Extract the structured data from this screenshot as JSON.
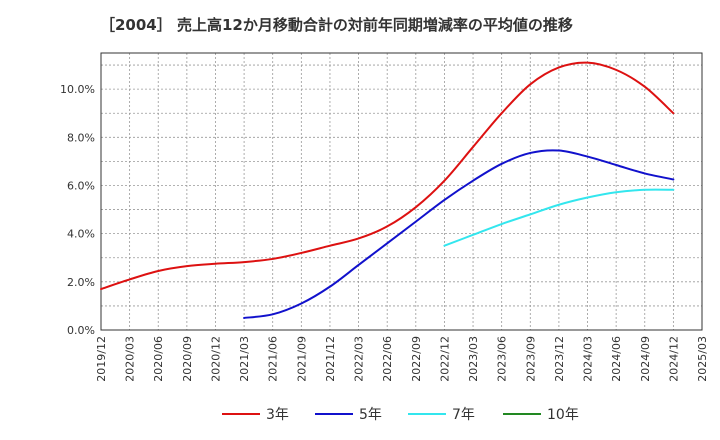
{
  "chart_data": {
    "type": "line",
    "title": "［2004］ 売上高12か月移動合計の対前年同期増減率の平均値の推移",
    "xlabel": "",
    "ylabel": "",
    "ylim": [
      0,
      11.5
    ],
    "y_ticks": [
      0,
      2,
      4,
      6,
      8,
      10
    ],
    "y_tick_labels": [
      "0.0%",
      "2.0%",
      "4.0%",
      "6.0%",
      "8.0%",
      "10.0%"
    ],
    "x_tick_labels": [
      "2019/12",
      "2020/03",
      "2020/06",
      "2020/09",
      "2020/12",
      "2021/03",
      "2021/06",
      "2021/09",
      "2021/12",
      "2022/03",
      "2022/06",
      "2022/09",
      "2022/12",
      "2023/03",
      "2023/06",
      "2023/09",
      "2023/12",
      "2024/03",
      "2024/06",
      "2024/09",
      "2024/12",
      "2025/03"
    ],
    "grid": true,
    "legend_position": "bottom",
    "series": [
      {
        "name": "3年",
        "color": "#dd1111",
        "x": [
          "2019/12",
          "2020/03",
          "2020/06",
          "2020/09",
          "2020/12",
          "2021/03",
          "2021/06",
          "2021/09",
          "2021/12",
          "2022/03",
          "2022/06",
          "2022/09",
          "2022/12",
          "2023/03",
          "2023/06",
          "2023/09",
          "2023/12",
          "2024/03",
          "2024/06",
          "2024/09",
          "2024/12"
        ],
        "values": [
          1.7,
          2.1,
          2.45,
          2.65,
          2.75,
          2.82,
          2.95,
          3.2,
          3.5,
          3.8,
          4.3,
          5.1,
          6.2,
          7.6,
          9.0,
          10.2,
          10.9,
          11.1,
          10.8,
          10.1,
          9.0
        ]
      },
      {
        "name": "5年",
        "color": "#1111cc",
        "x": [
          "2021/03",
          "2021/06",
          "2021/09",
          "2021/12",
          "2022/03",
          "2022/06",
          "2022/09",
          "2022/12",
          "2023/03",
          "2023/06",
          "2023/09",
          "2023/12",
          "2024/03",
          "2024/06",
          "2024/09",
          "2024/12"
        ],
        "values": [
          0.5,
          0.65,
          1.1,
          1.8,
          2.7,
          3.6,
          4.5,
          5.4,
          6.2,
          6.9,
          7.35,
          7.45,
          7.2,
          6.85,
          6.5,
          6.25
        ]
      },
      {
        "name": "7年",
        "color": "#33e6ee",
        "x": [
          "2022/12",
          "2023/03",
          "2023/06",
          "2023/09",
          "2023/12",
          "2024/03",
          "2024/06",
          "2024/09",
          "2024/12"
        ],
        "values": [
          3.5,
          3.95,
          4.4,
          4.8,
          5.2,
          5.5,
          5.72,
          5.82,
          5.82
        ]
      },
      {
        "name": "10年",
        "color": "#228822",
        "x": [],
        "values": []
      }
    ]
  }
}
